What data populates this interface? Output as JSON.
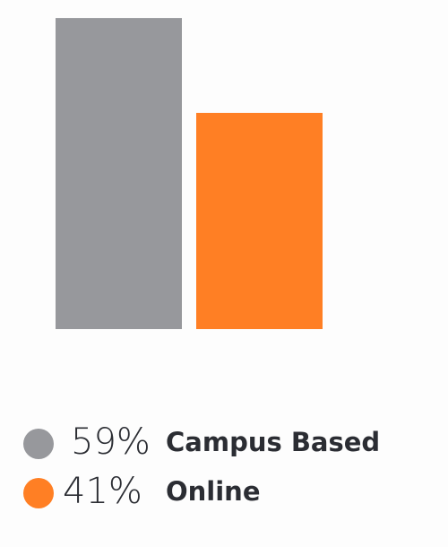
{
  "chart_data": {
    "type": "bar",
    "categories": [
      "Campus Based",
      "Online"
    ],
    "values": [
      59,
      41
    ],
    "value_labels": [
      "59%",
      "41%"
    ],
    "colors": [
      "#97989c",
      "#ff7f24"
    ]
  }
}
